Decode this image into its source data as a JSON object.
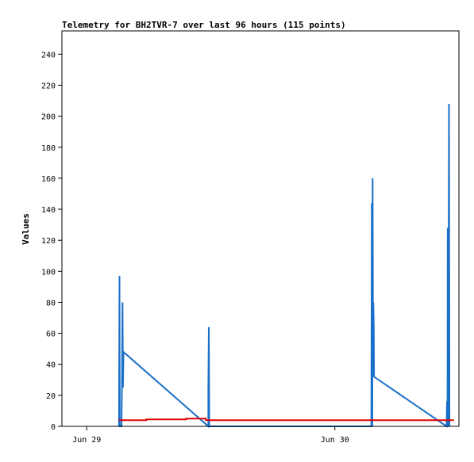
{
  "chart_data": {
    "type": "line",
    "title": "Telemetry for BH2TVR-7 over last 96 hours (115 points)",
    "xlabel": "",
    "ylabel": "Values",
    "ylim": [
      0,
      255
    ],
    "xlim": [
      -0.1,
      1.5
    ],
    "yticks": [
      0,
      20,
      40,
      60,
      80,
      100,
      120,
      140,
      160,
      180,
      200,
      220,
      240
    ],
    "xticks": [
      {
        "value": 0,
        "label": "Jun 29"
      },
      {
        "value": 1,
        "label": "Jun 30"
      }
    ],
    "grid": false,
    "legend": "none",
    "colors": {
      "series_blue": "#1a6fc8",
      "series_red": "#e00000",
      "series_black": "#000000",
      "axis": "#000000",
      "background": "#ffffff"
    },
    "series": [
      {
        "color": "#1a6fc8",
        "points": [
          [
            0.13,
            0
          ],
          [
            0.132,
            97
          ],
          [
            0.133,
            0
          ],
          [
            0.14,
            0
          ],
          [
            0.142,
            25
          ],
          [
            0.144,
            80
          ],
          [
            0.146,
            25
          ],
          [
            0.148,
            48
          ],
          [
            0.49,
            0
          ],
          [
            0.49,
            25
          ],
          [
            0.492,
            64
          ],
          [
            0.494,
            0
          ],
          [
            1.147,
            0
          ],
          [
            1.149,
            144
          ],
          [
            1.151,
            0
          ],
          [
            1.152,
            160
          ],
          [
            1.154,
            32
          ],
          [
            1.155,
            80
          ],
          [
            1.157,
            64
          ],
          [
            1.158,
            32
          ],
          [
            1.45,
            0
          ],
          [
            1.452,
            16
          ],
          [
            1.454,
            0
          ],
          [
            1.455,
            128
          ],
          [
            1.457,
            0
          ],
          [
            1.458,
            64
          ],
          [
            1.46,
            208
          ],
          [
            1.462,
            0
          ]
        ]
      },
      {
        "color": "#e00000",
        "points": [
          [
            0.13,
            4
          ],
          [
            0.24,
            4
          ],
          [
            0.24,
            4.5
          ],
          [
            0.4,
            4.5
          ],
          [
            0.4,
            5
          ],
          [
            0.48,
            5
          ],
          [
            0.48,
            4
          ],
          [
            1.48,
            4
          ]
        ]
      },
      {
        "color": "#000000",
        "points": [
          [
            -0.1,
            0
          ],
          [
            1.48,
            0
          ]
        ]
      }
    ]
  }
}
